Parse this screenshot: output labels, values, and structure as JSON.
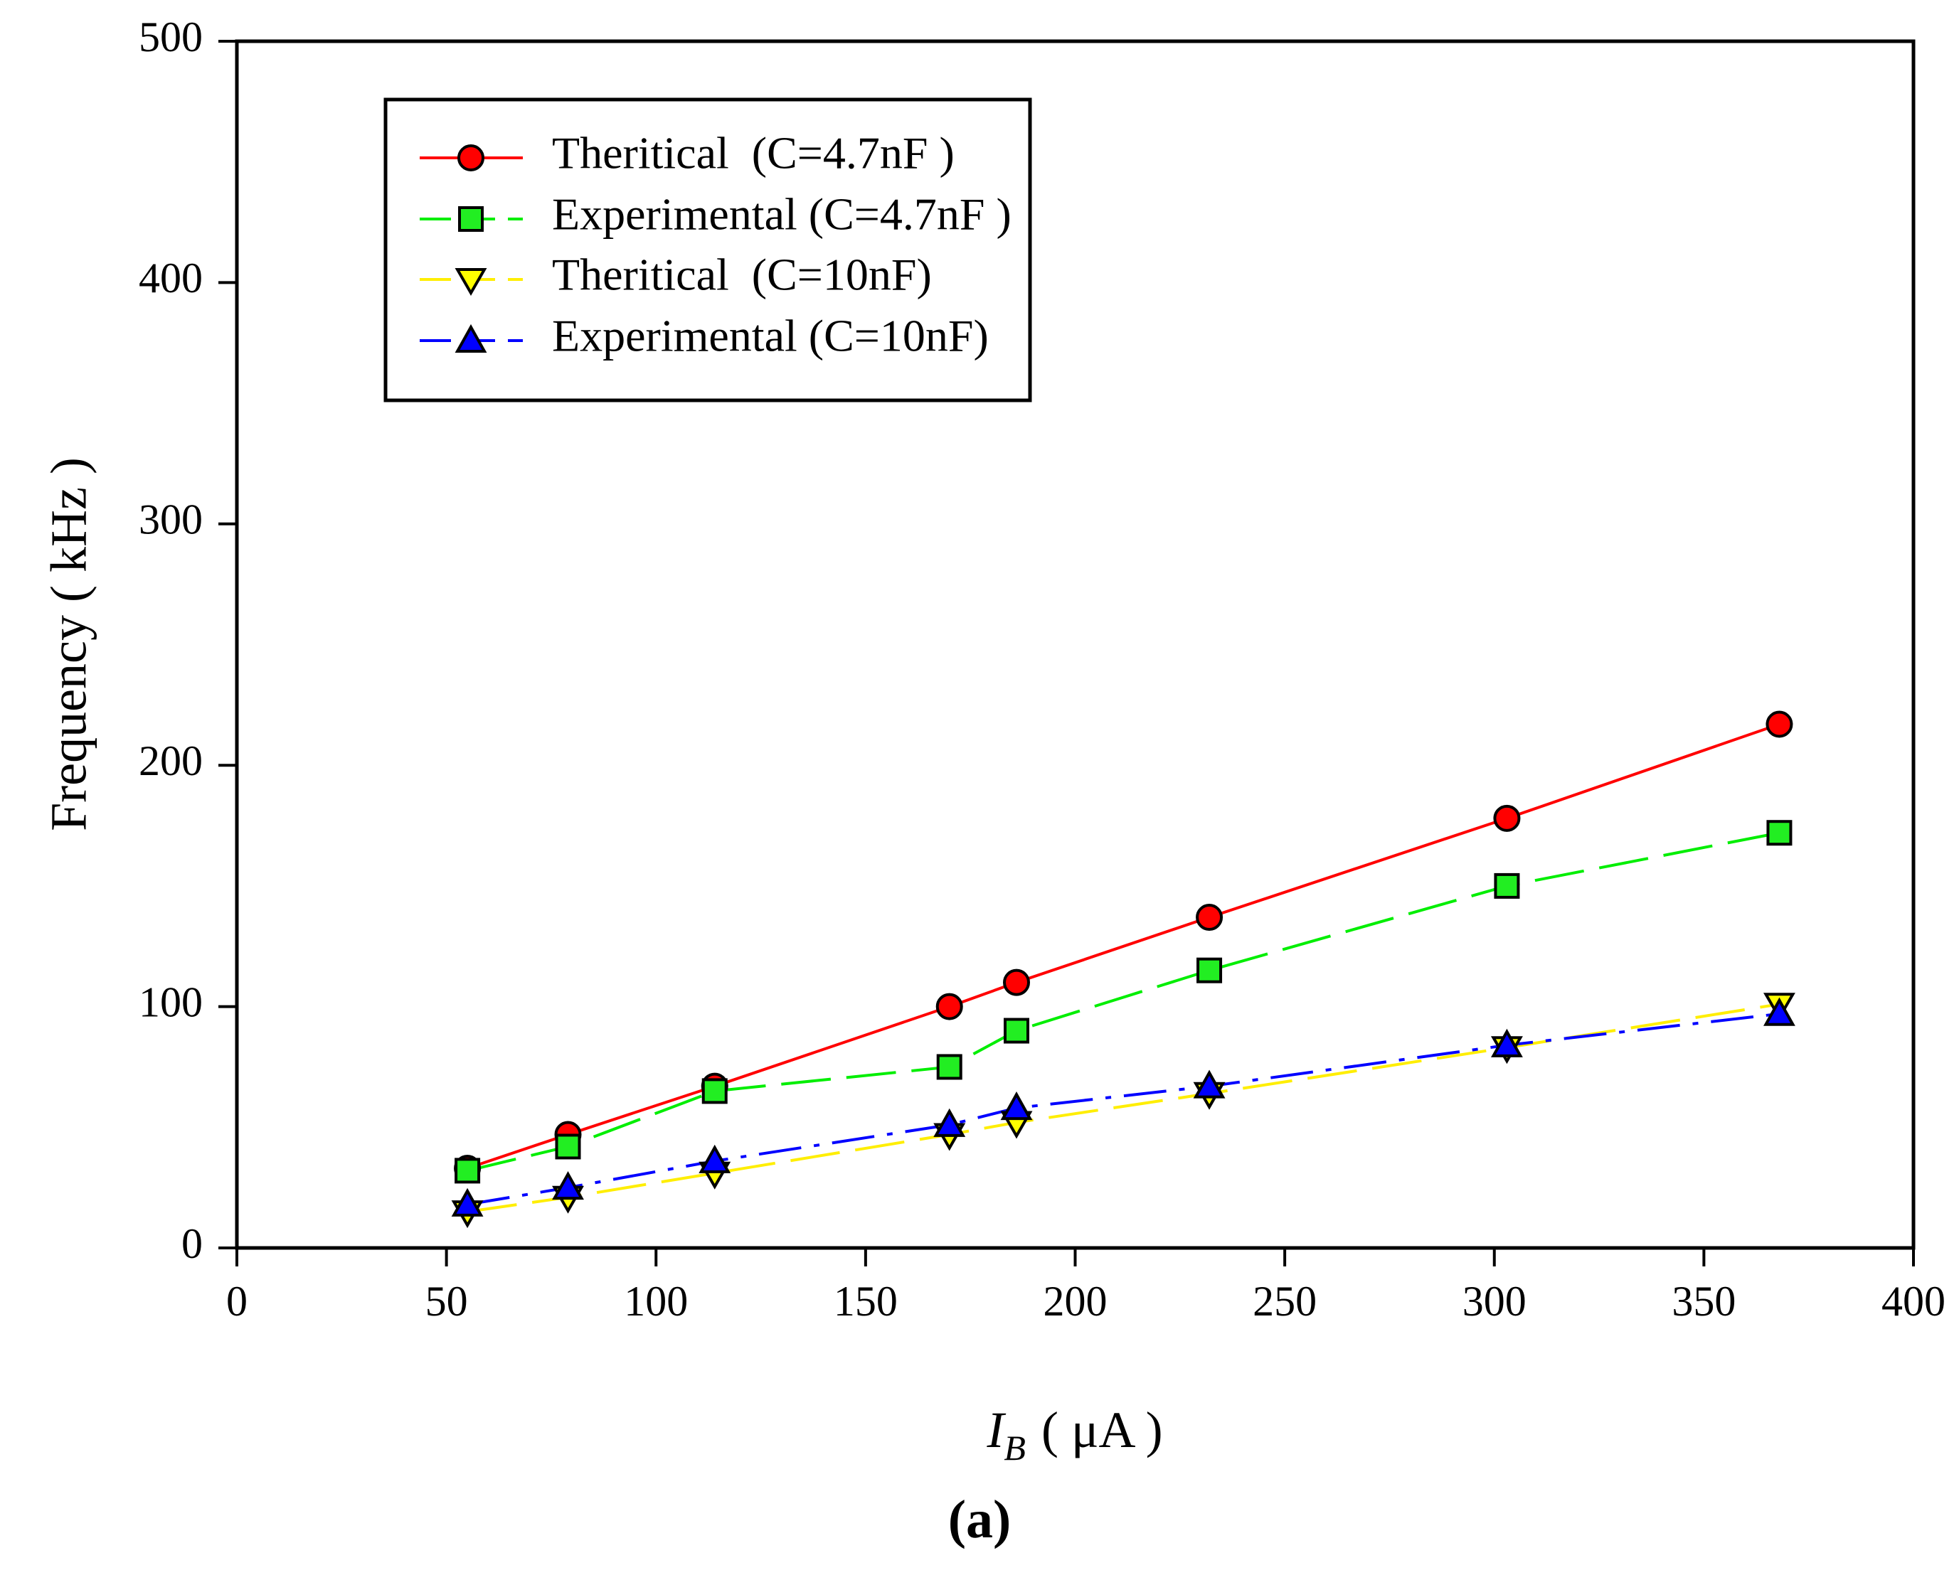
{
  "chart_data": {
    "type": "line",
    "title": "",
    "xlabel_main": "I",
    "xlabel_sub": "B",
    "xlabel_unit": "( μA )",
    "ylabel": "Frequency ( kHz )",
    "xlim": [
      0,
      400
    ],
    "ylim": [
      0,
      500
    ],
    "xticks": [
      0,
      50,
      100,
      150,
      200,
      250,
      300,
      350,
      400
    ],
    "yticks": [
      0,
      100,
      200,
      300,
      400,
      500
    ],
    "grid": false,
    "legend_position": "top-left",
    "caption": "(a)",
    "series": [
      {
        "name": "Theritical  (C=4.7nF )",
        "color": "#ff0000",
        "marker": "circle",
        "marker_fill": "#ff0000",
        "line_style": "solid",
        "x": [
          55,
          79,
          114,
          170,
          186,
          232,
          303,
          368
        ],
        "y": [
          33,
          47,
          67,
          100,
          110,
          137,
          178,
          217
        ]
      },
      {
        "name": "Experimental (C=4.7nF )",
        "color": "#00ee00",
        "marker": "square",
        "marker_fill": "#22ee22",
        "line_style": "dashed",
        "x": [
          55,
          79,
          114,
          170,
          186,
          232,
          303,
          368
        ],
        "y": [
          32,
          42,
          65,
          75,
          90,
          115,
          150,
          172
        ]
      },
      {
        "name": "Theritical  (C=10nF)",
        "color": "#ffee00",
        "marker": "triangle-down",
        "marker_fill": "#ffff00",
        "line_style": "dashed",
        "x": [
          55,
          79,
          114,
          170,
          186,
          232,
          303,
          368
        ],
        "y": [
          15,
          21,
          31,
          47,
          52,
          64,
          83,
          101
        ]
      },
      {
        "name": "Experimental (C=10nF)",
        "color": "#0000ff",
        "marker": "triangle-up",
        "marker_fill": "#0000ff",
        "line_style": "dashdot",
        "x": [
          55,
          79,
          114,
          170,
          186,
          232,
          303,
          368
        ],
        "y": [
          18,
          25,
          36,
          51,
          58,
          67,
          84,
          97
        ]
      }
    ]
  }
}
